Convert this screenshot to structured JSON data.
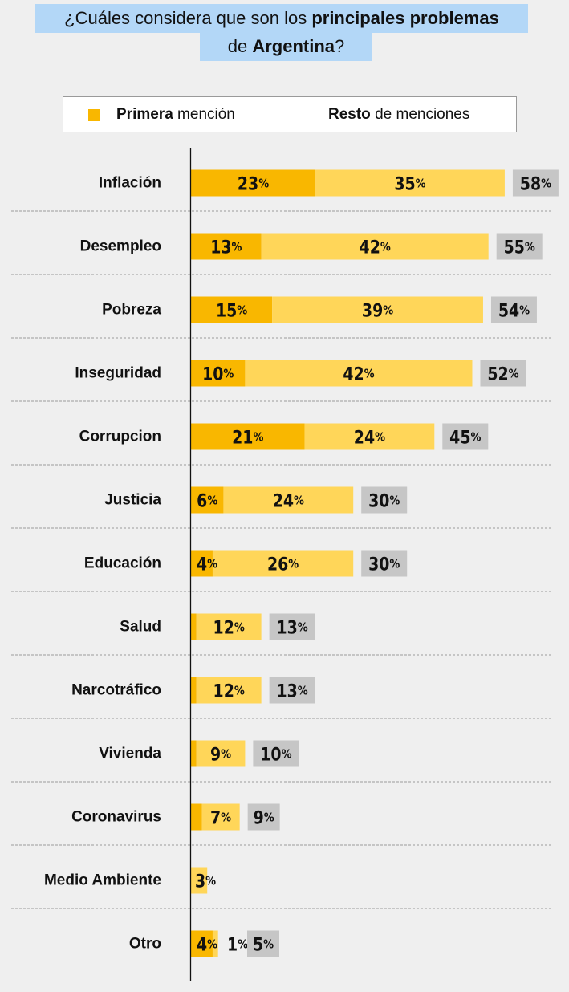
{
  "title": {
    "line1_prefix": "¿Cuáles considera que son los ",
    "line1_bold": "principales problemas",
    "line2_prefix": "de ",
    "line2_bold": "Argentina",
    "line2_suffix": "?"
  },
  "legend": {
    "primary_bold": "Primera",
    "primary_rest": " mención",
    "rest_bold": "Resto",
    "rest_rest": " de menciones"
  },
  "colors": {
    "primary": "#f9b700",
    "rest": "#ffd659",
    "total_bg": "#c6c6c6",
    "background": "#efefef"
  },
  "chart_data": {
    "type": "bar",
    "orientation": "horizontal",
    "stacked": true,
    "title": "¿Cuáles considera que son los principales problemas de Argentina?",
    "categories": [
      "Inflación",
      "Desempleo",
      "Pobreza",
      "Inseguridad",
      "Corrupcion",
      "Justicia",
      "Educación",
      "Salud",
      "Narcotráfico",
      "Vivienda",
      "Coronavirus",
      "Medio Ambiente",
      "Otro"
    ],
    "series": [
      {
        "name": "Primera mención",
        "values": [
          23,
          13,
          15,
          10,
          21,
          6,
          4,
          1,
          1,
          1,
          2,
          0,
          4
        ],
        "labels": [
          "23%",
          "13%",
          "15%",
          "10%",
          "21%",
          "6%",
          "4%",
          "",
          "",
          "",
          "",
          "",
          "4%"
        ]
      },
      {
        "name": "Resto de menciones",
        "values": [
          35,
          42,
          39,
          42,
          24,
          24,
          26,
          12,
          12,
          9,
          7,
          3,
          1
        ],
        "labels": [
          "35%",
          "42%",
          "39%",
          "42%",
          "24%",
          "24%",
          "26%",
          "12%",
          "12%",
          "9%",
          "7%",
          "3%",
          "1%"
        ]
      }
    ],
    "totals": [
      58,
      55,
      54,
      52,
      45,
      30,
      30,
      13,
      13,
      10,
      9,
      3,
      5
    ],
    "total_labels": [
      "58%",
      "55%",
      "54%",
      "52%",
      "45%",
      "30%",
      "30%",
      "13%",
      "13%",
      "10%",
      "9%",
      "",
      "5%"
    ],
    "xlim": [
      0,
      60
    ],
    "unit": "%"
  }
}
